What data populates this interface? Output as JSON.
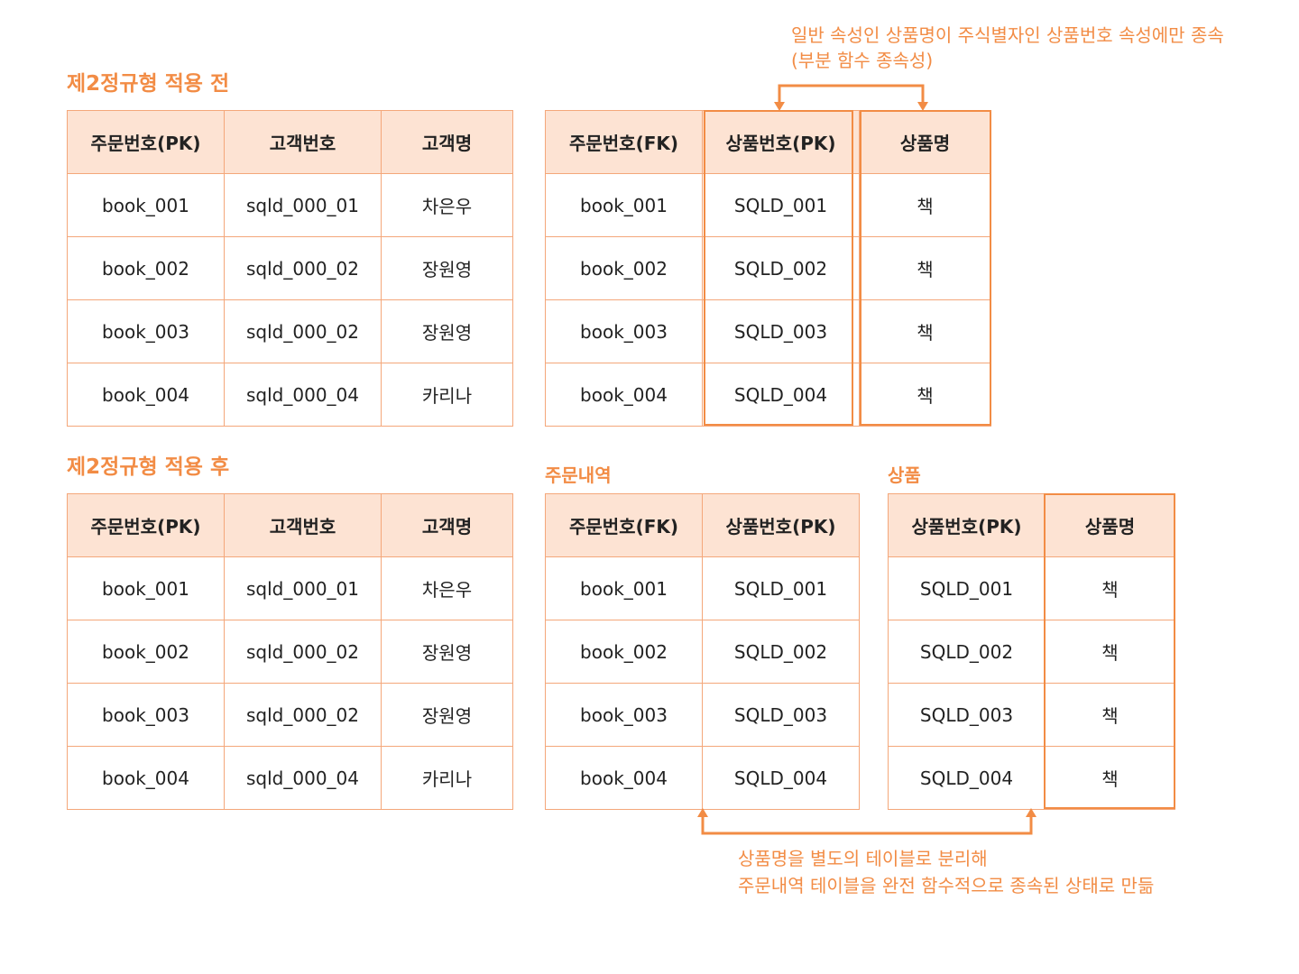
{
  "before": {
    "title": "제2정규형 적용 전",
    "note_line1": "일반 속성인 상품명이 주식별자인 상품번호 속성에만 종속",
    "note_line2": "(부분 함수 종속성)",
    "left_table": {
      "headers": [
        "주문번호(PK)",
        "고객번호",
        "고객명"
      ],
      "rows": [
        [
          "book_001",
          "sqld_000_01",
          "차은우"
        ],
        [
          "book_002",
          "sqld_000_02",
          "장원영"
        ],
        [
          "book_003",
          "sqld_000_02",
          "장원영"
        ],
        [
          "book_004",
          "sqld_000_04",
          "카리나"
        ]
      ]
    },
    "right_table": {
      "headers": [
        "주문번호(FK)",
        "상품번호(PK)",
        "상품명"
      ],
      "rows": [
        [
          "book_001",
          "SQLD_001",
          "책"
        ],
        [
          "book_002",
          "SQLD_002",
          "책"
        ],
        [
          "book_003",
          "SQLD_003",
          "책"
        ],
        [
          "book_004",
          "SQLD_004",
          "책"
        ]
      ]
    }
  },
  "after": {
    "title": "제2정규형 적용 후",
    "left_table": {
      "headers": [
        "주문번호(PK)",
        "고객번호",
        "고객명"
      ],
      "rows": [
        [
          "book_001",
          "sqld_000_01",
          "차은우"
        ],
        [
          "book_002",
          "sqld_000_02",
          "장원영"
        ],
        [
          "book_003",
          "sqld_000_02",
          "장원영"
        ],
        [
          "book_004",
          "sqld_000_04",
          "카리나"
        ]
      ]
    },
    "order_detail": {
      "label": "주문내역",
      "headers": [
        "주문번호(FK)",
        "상품번호(PK)"
      ],
      "rows": [
        [
          "book_001",
          "SQLD_001"
        ],
        [
          "book_002",
          "SQLD_002"
        ],
        [
          "book_003",
          "SQLD_003"
        ],
        [
          "book_004",
          "SQLD_004"
        ]
      ]
    },
    "product": {
      "label": "상품",
      "headers": [
        "상품번호(PK)",
        "상품명"
      ],
      "rows": [
        [
          "SQLD_001",
          "책"
        ],
        [
          "SQLD_002",
          "책"
        ],
        [
          "SQLD_003",
          "책"
        ],
        [
          "SQLD_004",
          "책"
        ]
      ]
    },
    "note_line1": "상품명을 별도의 테이블로 분리해",
    "note_line2": "주문내역 테이블을 완전 함수적으로 종속된 상태로 만듦"
  },
  "colors": {
    "accent": "#f28c45",
    "header_bg": "#fde3d3",
    "border": "#f4a77a"
  }
}
